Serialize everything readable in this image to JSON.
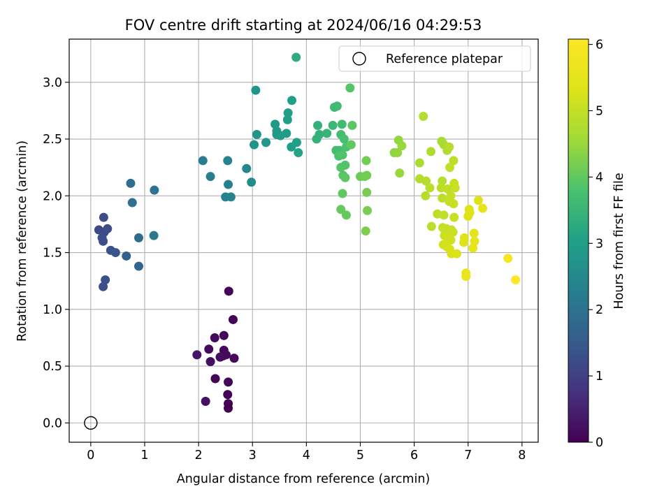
{
  "chart_data": {
    "type": "scatter",
    "title": "FOV centre drift starting at 2024/06/16 04:29:53",
    "xlabel": "Angular distance from reference (arcmin)",
    "ylabel": "Rotation from reference (arcmin)",
    "xlim": [
      -0.4,
      8.3
    ],
    "ylim": [
      -0.17,
      3.38
    ],
    "xticks": [
      "0",
      "1",
      "2",
      "3",
      "4",
      "5",
      "6",
      "7",
      "8"
    ],
    "yticks": [
      "0.0",
      "0.5",
      "1.0",
      "1.5",
      "2.0",
      "2.5",
      "3.0"
    ],
    "grid": true,
    "legend": {
      "placement": "upper right",
      "entries": [
        "Reference platepar"
      ]
    },
    "reference_point": {
      "x": 0.0,
      "y": 0.0,
      "marker": "open-circle"
    },
    "colorbar": {
      "label": "Hours from first FF file",
      "colormap": "viridis",
      "range": [
        0,
        6.08
      ],
      "ticks": [
        "0",
        "1",
        "2",
        "3",
        "4",
        "5",
        "6"
      ]
    },
    "points": [
      {
        "x": 2.56,
        "y": 1.16,
        "c": 0.05
      },
      {
        "x": 2.64,
        "y": 0.91,
        "c": 0.05
      },
      {
        "x": 2.47,
        "y": 0.77,
        "c": 0.08
      },
      {
        "x": 2.3,
        "y": 0.75,
        "c": 0.12
      },
      {
        "x": 2.47,
        "y": 0.64,
        "c": 0.1
      },
      {
        "x": 2.19,
        "y": 0.65,
        "c": 0.15
      },
      {
        "x": 2.45,
        "y": 0.59,
        "c": 0.12
      },
      {
        "x": 2.51,
        "y": 0.6,
        "c": 0.15
      },
      {
        "x": 2.4,
        "y": 0.58,
        "c": 0.18
      },
      {
        "x": 2.66,
        "y": 0.57,
        "c": 0.1
      },
      {
        "x": 2.22,
        "y": 0.54,
        "c": 0.2
      },
      {
        "x": 1.97,
        "y": 0.6,
        "c": 0.3
      },
      {
        "x": 2.31,
        "y": 0.39,
        "c": 0.05
      },
      {
        "x": 2.55,
        "y": 0.36,
        "c": 0.05
      },
      {
        "x": 2.54,
        "y": 0.25,
        "c": 0.03
      },
      {
        "x": 2.13,
        "y": 0.19,
        "c": 0.25
      },
      {
        "x": 2.55,
        "y": 0.17,
        "c": 0.02
      },
      {
        "x": 2.55,
        "y": 0.13,
        "c": 0.0
      },
      {
        "x": 0.24,
        "y": 1.81,
        "c": 1.25
      },
      {
        "x": 0.15,
        "y": 1.7,
        "c": 1.2
      },
      {
        "x": 0.25,
        "y": 1.68,
        "c": 1.2
      },
      {
        "x": 0.31,
        "y": 1.71,
        "c": 1.25
      },
      {
        "x": 0.21,
        "y": 1.63,
        "c": 1.3
      },
      {
        "x": 0.23,
        "y": 1.6,
        "c": 1.3
      },
      {
        "x": 0.37,
        "y": 1.52,
        "c": 1.35
      },
      {
        "x": 0.46,
        "y": 1.5,
        "c": 1.4
      },
      {
        "x": 0.66,
        "y": 1.47,
        "c": 1.6
      },
      {
        "x": 0.89,
        "y": 1.38,
        "c": 1.7
      },
      {
        "x": 0.27,
        "y": 1.26,
        "c": 1.3
      },
      {
        "x": 0.23,
        "y": 1.2,
        "c": 1.3
      },
      {
        "x": 0.89,
        "y": 1.63,
        "c": 1.85
      },
      {
        "x": 0.74,
        "y": 2.11,
        "c": 1.9
      },
      {
        "x": 0.77,
        "y": 1.94,
        "c": 1.95
      },
      {
        "x": 1.18,
        "y": 2.05,
        "c": 2.0
      },
      {
        "x": 1.17,
        "y": 1.65,
        "c": 2.1
      },
      {
        "x": 2.08,
        "y": 2.31,
        "c": 2.2
      },
      {
        "x": 2.22,
        "y": 2.17,
        "c": 2.25
      },
      {
        "x": 2.54,
        "y": 2.31,
        "c": 2.4
      },
      {
        "x": 2.55,
        "y": 2.1,
        "c": 2.3
      },
      {
        "x": 2.5,
        "y": 1.99,
        "c": 2.3
      },
      {
        "x": 2.6,
        "y": 1.99,
        "c": 2.35
      },
      {
        "x": 2.89,
        "y": 2.24,
        "c": 2.5
      },
      {
        "x": 2.98,
        "y": 2.12,
        "c": 2.6
      },
      {
        "x": 3.06,
        "y": 2.93,
        "c": 2.75
      },
      {
        "x": 3.03,
        "y": 2.45,
        "c": 2.7
      },
      {
        "x": 3.08,
        "y": 2.54,
        "c": 2.75
      },
      {
        "x": 3.25,
        "y": 2.47,
        "c": 2.8
      },
      {
        "x": 3.42,
        "y": 2.63,
        "c": 2.85
      },
      {
        "x": 3.45,
        "y": 2.57,
        "c": 2.85
      },
      {
        "x": 3.45,
        "y": 2.54,
        "c": 2.85
      },
      {
        "x": 3.52,
        "y": 2.53,
        "c": 2.9
      },
      {
        "x": 3.63,
        "y": 2.55,
        "c": 2.95
      },
      {
        "x": 3.65,
        "y": 2.67,
        "c": 3.0
      },
      {
        "x": 3.66,
        "y": 2.73,
        "c": 3.0
      },
      {
        "x": 3.73,
        "y": 2.84,
        "c": 3.05
      },
      {
        "x": 3.72,
        "y": 2.43,
        "c": 3.0
      },
      {
        "x": 3.82,
        "y": 2.47,
        "c": 3.05
      },
      {
        "x": 3.85,
        "y": 2.38,
        "c": 3.1
      },
      {
        "x": 3.81,
        "y": 3.22,
        "c": 3.3
      },
      {
        "x": 4.21,
        "y": 2.62,
        "c": 3.4
      },
      {
        "x": 4.24,
        "y": 2.54,
        "c": 3.4
      },
      {
        "x": 4.19,
        "y": 2.5,
        "c": 3.45
      },
      {
        "x": 4.38,
        "y": 2.55,
        "c": 3.5
      },
      {
        "x": 4.49,
        "y": 2.62,
        "c": 3.55
      },
      {
        "x": 4.52,
        "y": 2.78,
        "c": 3.6
      },
      {
        "x": 4.57,
        "y": 2.79,
        "c": 3.6
      },
      {
        "x": 4.66,
        "y": 2.63,
        "c": 3.65
      },
      {
        "x": 4.64,
        "y": 2.54,
        "c": 3.7
      },
      {
        "x": 4.7,
        "y": 2.5,
        "c": 3.75
      },
      {
        "x": 4.74,
        "y": 2.43,
        "c": 3.8
      },
      {
        "x": 4.61,
        "y": 2.4,
        "c": 3.75
      },
      {
        "x": 4.55,
        "y": 2.4,
        "c": 3.7
      },
      {
        "x": 4.6,
        "y": 2.35,
        "c": 3.8
      },
      {
        "x": 4.67,
        "y": 2.36,
        "c": 3.85
      },
      {
        "x": 4.72,
        "y": 2.27,
        "c": 3.85
      },
      {
        "x": 4.64,
        "y": 2.25,
        "c": 3.9
      },
      {
        "x": 4.68,
        "y": 2.18,
        "c": 3.9
      },
      {
        "x": 4.72,
        "y": 2.16,
        "c": 3.95
      },
      {
        "x": 4.81,
        "y": 2.95,
        "c": 3.9
      },
      {
        "x": 4.85,
        "y": 2.62,
        "c": 3.95
      },
      {
        "x": 4.83,
        "y": 2.45,
        "c": 4.0
      },
      {
        "x": 4.67,
        "y": 2.02,
        "c": 4.0
      },
      {
        "x": 4.64,
        "y": 1.88,
        "c": 4.05
      },
      {
        "x": 4.74,
        "y": 1.83,
        "c": 4.05
      },
      {
        "x": 5.0,
        "y": 2.17,
        "c": 4.1
      },
      {
        "x": 5.08,
        "y": 2.17,
        "c": 4.15
      },
      {
        "x": 5.11,
        "y": 2.31,
        "c": 4.15
      },
      {
        "x": 5.12,
        "y": 2.18,
        "c": 4.15
      },
      {
        "x": 5.12,
        "y": 2.03,
        "c": 4.2
      },
      {
        "x": 5.13,
        "y": 1.87,
        "c": 4.2
      },
      {
        "x": 5.1,
        "y": 1.69,
        "c": 4.25
      },
      {
        "x": 5.63,
        "y": 2.38,
        "c": 4.4
      },
      {
        "x": 5.69,
        "y": 2.38,
        "c": 4.45
      },
      {
        "x": 5.71,
        "y": 2.49,
        "c": 4.45
      },
      {
        "x": 5.77,
        "y": 2.44,
        "c": 4.5
      },
      {
        "x": 5.73,
        "y": 2.2,
        "c": 4.5
      },
      {
        "x": 6.17,
        "y": 2.7,
        "c": 4.8
      },
      {
        "x": 6.1,
        "y": 2.29,
        "c": 4.7
      },
      {
        "x": 6.1,
        "y": 2.15,
        "c": 4.8
      },
      {
        "x": 6.22,
        "y": 2.13,
        "c": 4.85
      },
      {
        "x": 6.29,
        "y": 2.07,
        "c": 4.9
      },
      {
        "x": 6.21,
        "y": 2.0,
        "c": 4.85
      },
      {
        "x": 6.31,
        "y": 2.39,
        "c": 4.75
      },
      {
        "x": 6.51,
        "y": 2.48,
        "c": 4.6
      },
      {
        "x": 6.55,
        "y": 2.45,
        "c": 4.65
      },
      {
        "x": 6.61,
        "y": 2.4,
        "c": 4.75
      },
      {
        "x": 6.65,
        "y": 2.43,
        "c": 4.85
      },
      {
        "x": 6.73,
        "y": 2.31,
        "c": 4.9
      },
      {
        "x": 6.66,
        "y": 2.25,
        "c": 4.95
      },
      {
        "x": 6.52,
        "y": 2.13,
        "c": 4.8
      },
      {
        "x": 6.5,
        "y": 2.07,
        "c": 4.9
      },
      {
        "x": 6.62,
        "y": 2.06,
        "c": 4.95
      },
      {
        "x": 6.68,
        "y": 2.0,
        "c": 5.0
      },
      {
        "x": 6.52,
        "y": 1.98,
        "c": 4.9
      },
      {
        "x": 6.65,
        "y": 1.95,
        "c": 5.0
      },
      {
        "x": 6.73,
        "y": 1.93,
        "c": 5.05
      },
      {
        "x": 6.74,
        "y": 2.11,
        "c": 5.05
      },
      {
        "x": 6.76,
        "y": 2.07,
        "c": 5.05
      },
      {
        "x": 6.43,
        "y": 1.84,
        "c": 4.9
      },
      {
        "x": 6.55,
        "y": 1.83,
        "c": 4.95
      },
      {
        "x": 6.74,
        "y": 1.81,
        "c": 5.05
      },
      {
        "x": 6.32,
        "y": 1.73,
        "c": 4.9
      },
      {
        "x": 6.53,
        "y": 1.72,
        "c": 5.0
      },
      {
        "x": 6.57,
        "y": 1.7,
        "c": 5.05
      },
      {
        "x": 6.6,
        "y": 1.71,
        "c": 5.05
      },
      {
        "x": 6.69,
        "y": 1.7,
        "c": 5.1
      },
      {
        "x": 6.72,
        "y": 1.68,
        "c": 5.1
      },
      {
        "x": 6.56,
        "y": 1.65,
        "c": 5.1
      },
      {
        "x": 6.62,
        "y": 1.63,
        "c": 5.15
      },
      {
        "x": 6.68,
        "y": 1.61,
        "c": 5.15
      },
      {
        "x": 6.54,
        "y": 1.57,
        "c": 5.2
      },
      {
        "x": 6.61,
        "y": 1.55,
        "c": 5.2
      },
      {
        "x": 6.66,
        "y": 1.53,
        "c": 5.25
      },
      {
        "x": 6.69,
        "y": 1.49,
        "c": 5.25
      },
      {
        "x": 6.79,
        "y": 1.49,
        "c": 5.3
      },
      {
        "x": 6.93,
        "y": 1.63,
        "c": 5.4
      },
      {
        "x": 6.92,
        "y": 1.59,
        "c": 5.4
      },
      {
        "x": 7.0,
        "y": 1.82,
        "c": 5.35
      },
      {
        "x": 7.02,
        "y": 1.88,
        "c": 5.35
      },
      {
        "x": 7.03,
        "y": 1.85,
        "c": 5.4
      },
      {
        "x": 7.19,
        "y": 1.96,
        "c": 5.4
      },
      {
        "x": 7.27,
        "y": 1.89,
        "c": 5.5
      },
      {
        "x": 7.11,
        "y": 1.67,
        "c": 5.5
      },
      {
        "x": 7.12,
        "y": 1.6,
        "c": 5.55
      },
      {
        "x": 7.09,
        "y": 1.54,
        "c": 5.55
      },
      {
        "x": 6.96,
        "y": 1.32,
        "c": 5.65
      },
      {
        "x": 6.96,
        "y": 1.29,
        "c": 5.65
      },
      {
        "x": 7.74,
        "y": 1.45,
        "c": 5.9
      },
      {
        "x": 7.88,
        "y": 1.26,
        "c": 6.05
      }
    ]
  }
}
